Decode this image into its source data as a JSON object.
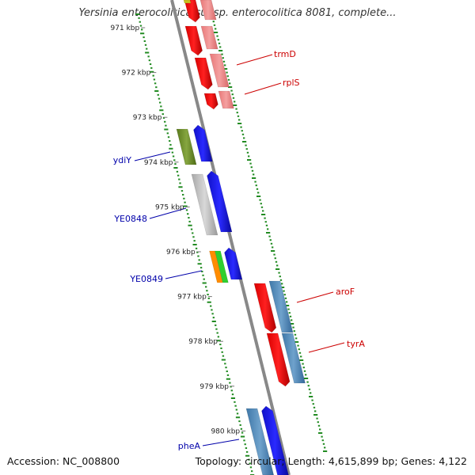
{
  "title": "Yersinia enterocolitica subsp. enterocolitica 8081, complete...",
  "footer": {
    "accession": "Accession: NC_008800",
    "summary": "Topology: circular; Length: 4,615,899 bp; Genes: 4,122"
  },
  "scale_labels": [
    "971 kbp",
    "972 kbp",
    "973 kbp",
    "974 kbp",
    "975 kbp",
    "976 kbp",
    "977 kbp",
    "978 kbp",
    "979 kbp",
    "980 kbp"
  ],
  "colors": {
    "forward_label": "#cc0000",
    "reverse_label": "#0000aa",
    "tick": "#228b22",
    "backbone": "#888888"
  },
  "genes": [
    {
      "name": "trmD",
      "color": "#cc0000"
    },
    {
      "name": "rplS",
      "color": "#cc0000"
    },
    {
      "name": "ydiY",
      "color": "#0000aa"
    },
    {
      "name": "YE0848",
      "color": "#0000aa"
    },
    {
      "name": "YE0849",
      "color": "#0000aa"
    },
    {
      "name": "aroF",
      "color": "#cc0000"
    },
    {
      "name": "tyrA",
      "color": "#cc0000"
    },
    {
      "name": "pheA",
      "color": "#0000aa"
    }
  ]
}
